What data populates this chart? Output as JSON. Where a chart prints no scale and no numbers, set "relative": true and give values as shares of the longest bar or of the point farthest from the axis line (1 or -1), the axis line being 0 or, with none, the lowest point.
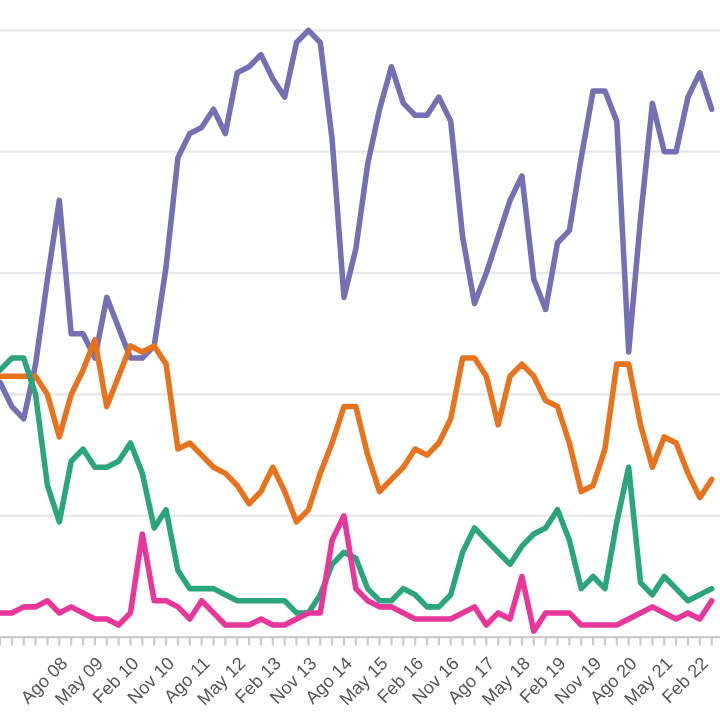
{
  "chart_data": {
    "type": "line",
    "relative": true,
    "grid": "y",
    "legend": false,
    "categories": [
      null,
      null,
      null,
      null,
      null,
      "Ago 08",
      null,
      null,
      "May 09",
      null,
      null,
      "Feb 10",
      null,
      null,
      "Nov 10",
      null,
      null,
      "Ago 11",
      null,
      null,
      "May 12",
      null,
      null,
      "Feb 13",
      null,
      null,
      "Nov 13",
      null,
      null,
      "Ago 14",
      null,
      null,
      "May 15",
      null,
      null,
      "Feb 16",
      null,
      null,
      "Nov 16",
      null,
      null,
      "Ago 17",
      null,
      null,
      "May 18",
      null,
      null,
      "Feb 19",
      null,
      null,
      "Nov 19",
      null,
      null,
      "Ago 20",
      null,
      null,
      "May 21",
      null,
      null,
      "Feb 22",
      null
    ],
    "series": [
      {
        "color": "#7570b3",
        "values": [
          0.42,
          0.38,
          0.36,
          0.45,
          0.59,
          0.72,
          0.5,
          0.5,
          0.46,
          0.56,
          0.51,
          0.46,
          0.46,
          0.48,
          0.61,
          0.79,
          0.83,
          0.84,
          0.87,
          0.83,
          0.93,
          0.94,
          0.96,
          0.92,
          0.89,
          0.98,
          1,
          0.98,
          0.82,
          0.56,
          0.64,
          0.78,
          0.87,
          0.94,
          0.88,
          0.86,
          0.86,
          0.89,
          0.85,
          0.66,
          0.55,
          0.6,
          0.66,
          0.72,
          0.76,
          0.59,
          0.54,
          0.65,
          0.67,
          0.79,
          0.9,
          0.9,
          0.85,
          0.47,
          0.69,
          0.88,
          0.8,
          0.8,
          0.89,
          0.93,
          0.87
        ]
      },
      {
        "color": "#e8731c",
        "values": [
          0.43,
          0.43,
          0.43,
          0.43,
          0.4,
          0.33,
          0.4,
          0.44,
          0.49,
          0.38,
          0.43,
          0.48,
          0.47,
          0.48,
          0.45,
          0.31,
          0.32,
          0.3,
          0.28,
          0.27,
          0.25,
          0.22,
          0.24,
          0.28,
          0.24,
          0.19,
          0.21,
          0.27,
          0.32,
          0.38,
          0.38,
          0.3,
          0.24,
          0.26,
          0.28,
          0.31,
          0.3,
          0.32,
          0.36,
          0.46,
          0.46,
          0.43,
          0.35,
          0.43,
          0.45,
          0.43,
          0.39,
          0.38,
          0.32,
          0.24,
          0.25,
          0.31,
          0.45,
          0.45,
          0.35,
          0.28,
          0.33,
          0.32,
          0.27,
          0.23,
          0.26
        ]
      },
      {
        "color": "#2aa57c",
        "values": [
          0.44,
          0.46,
          0.46,
          0.4,
          0.25,
          0.19,
          0.29,
          0.31,
          0.28,
          0.28,
          0.29,
          0.32,
          0.27,
          0.18,
          0.21,
          0.11,
          0.08,
          0.08,
          0.08,
          0.07,
          0.06,
          0.06,
          0.06,
          0.06,
          0.06,
          0.04,
          0.04,
          0.07,
          0.12,
          0.14,
          0.13,
          0.08,
          0.06,
          0.06,
          0.08,
          0.07,
          0.05,
          0.05,
          0.07,
          0.14,
          0.18,
          0.16,
          0.14,
          0.12,
          0.15,
          0.17,
          0.18,
          0.21,
          0.16,
          0.08,
          0.1,
          0.08,
          0.19,
          0.28,
          0.09,
          0.07,
          0.1,
          0.08,
          0.06,
          0.07,
          0.08
        ]
      },
      {
        "color": "#e8369a",
        "values": [
          0.04,
          0.04,
          0.05,
          0.05,
          0.06,
          0.04,
          0.05,
          0.04,
          0.03,
          0.03,
          0.02,
          0.04,
          0.17,
          0.06,
          0.06,
          0.05,
          0.03,
          0.06,
          0.04,
          0.02,
          0.02,
          0.02,
          0.03,
          0.02,
          0.02,
          0.03,
          0.04,
          0.04,
          0.16,
          0.2,
          0.08,
          0.06,
          0.05,
          0.05,
          0.04,
          0.03,
          0.03,
          0.03,
          0.03,
          0.04,
          0.05,
          0.02,
          0.04,
          0.03,
          0.1,
          0.01,
          0.04,
          0.04,
          0.04,
          0.02,
          0.02,
          0.02,
          0.02,
          0.03,
          0.04,
          0.05,
          0.04,
          0.03,
          0.04,
          0.03,
          0.06
        ]
      }
    ]
  }
}
